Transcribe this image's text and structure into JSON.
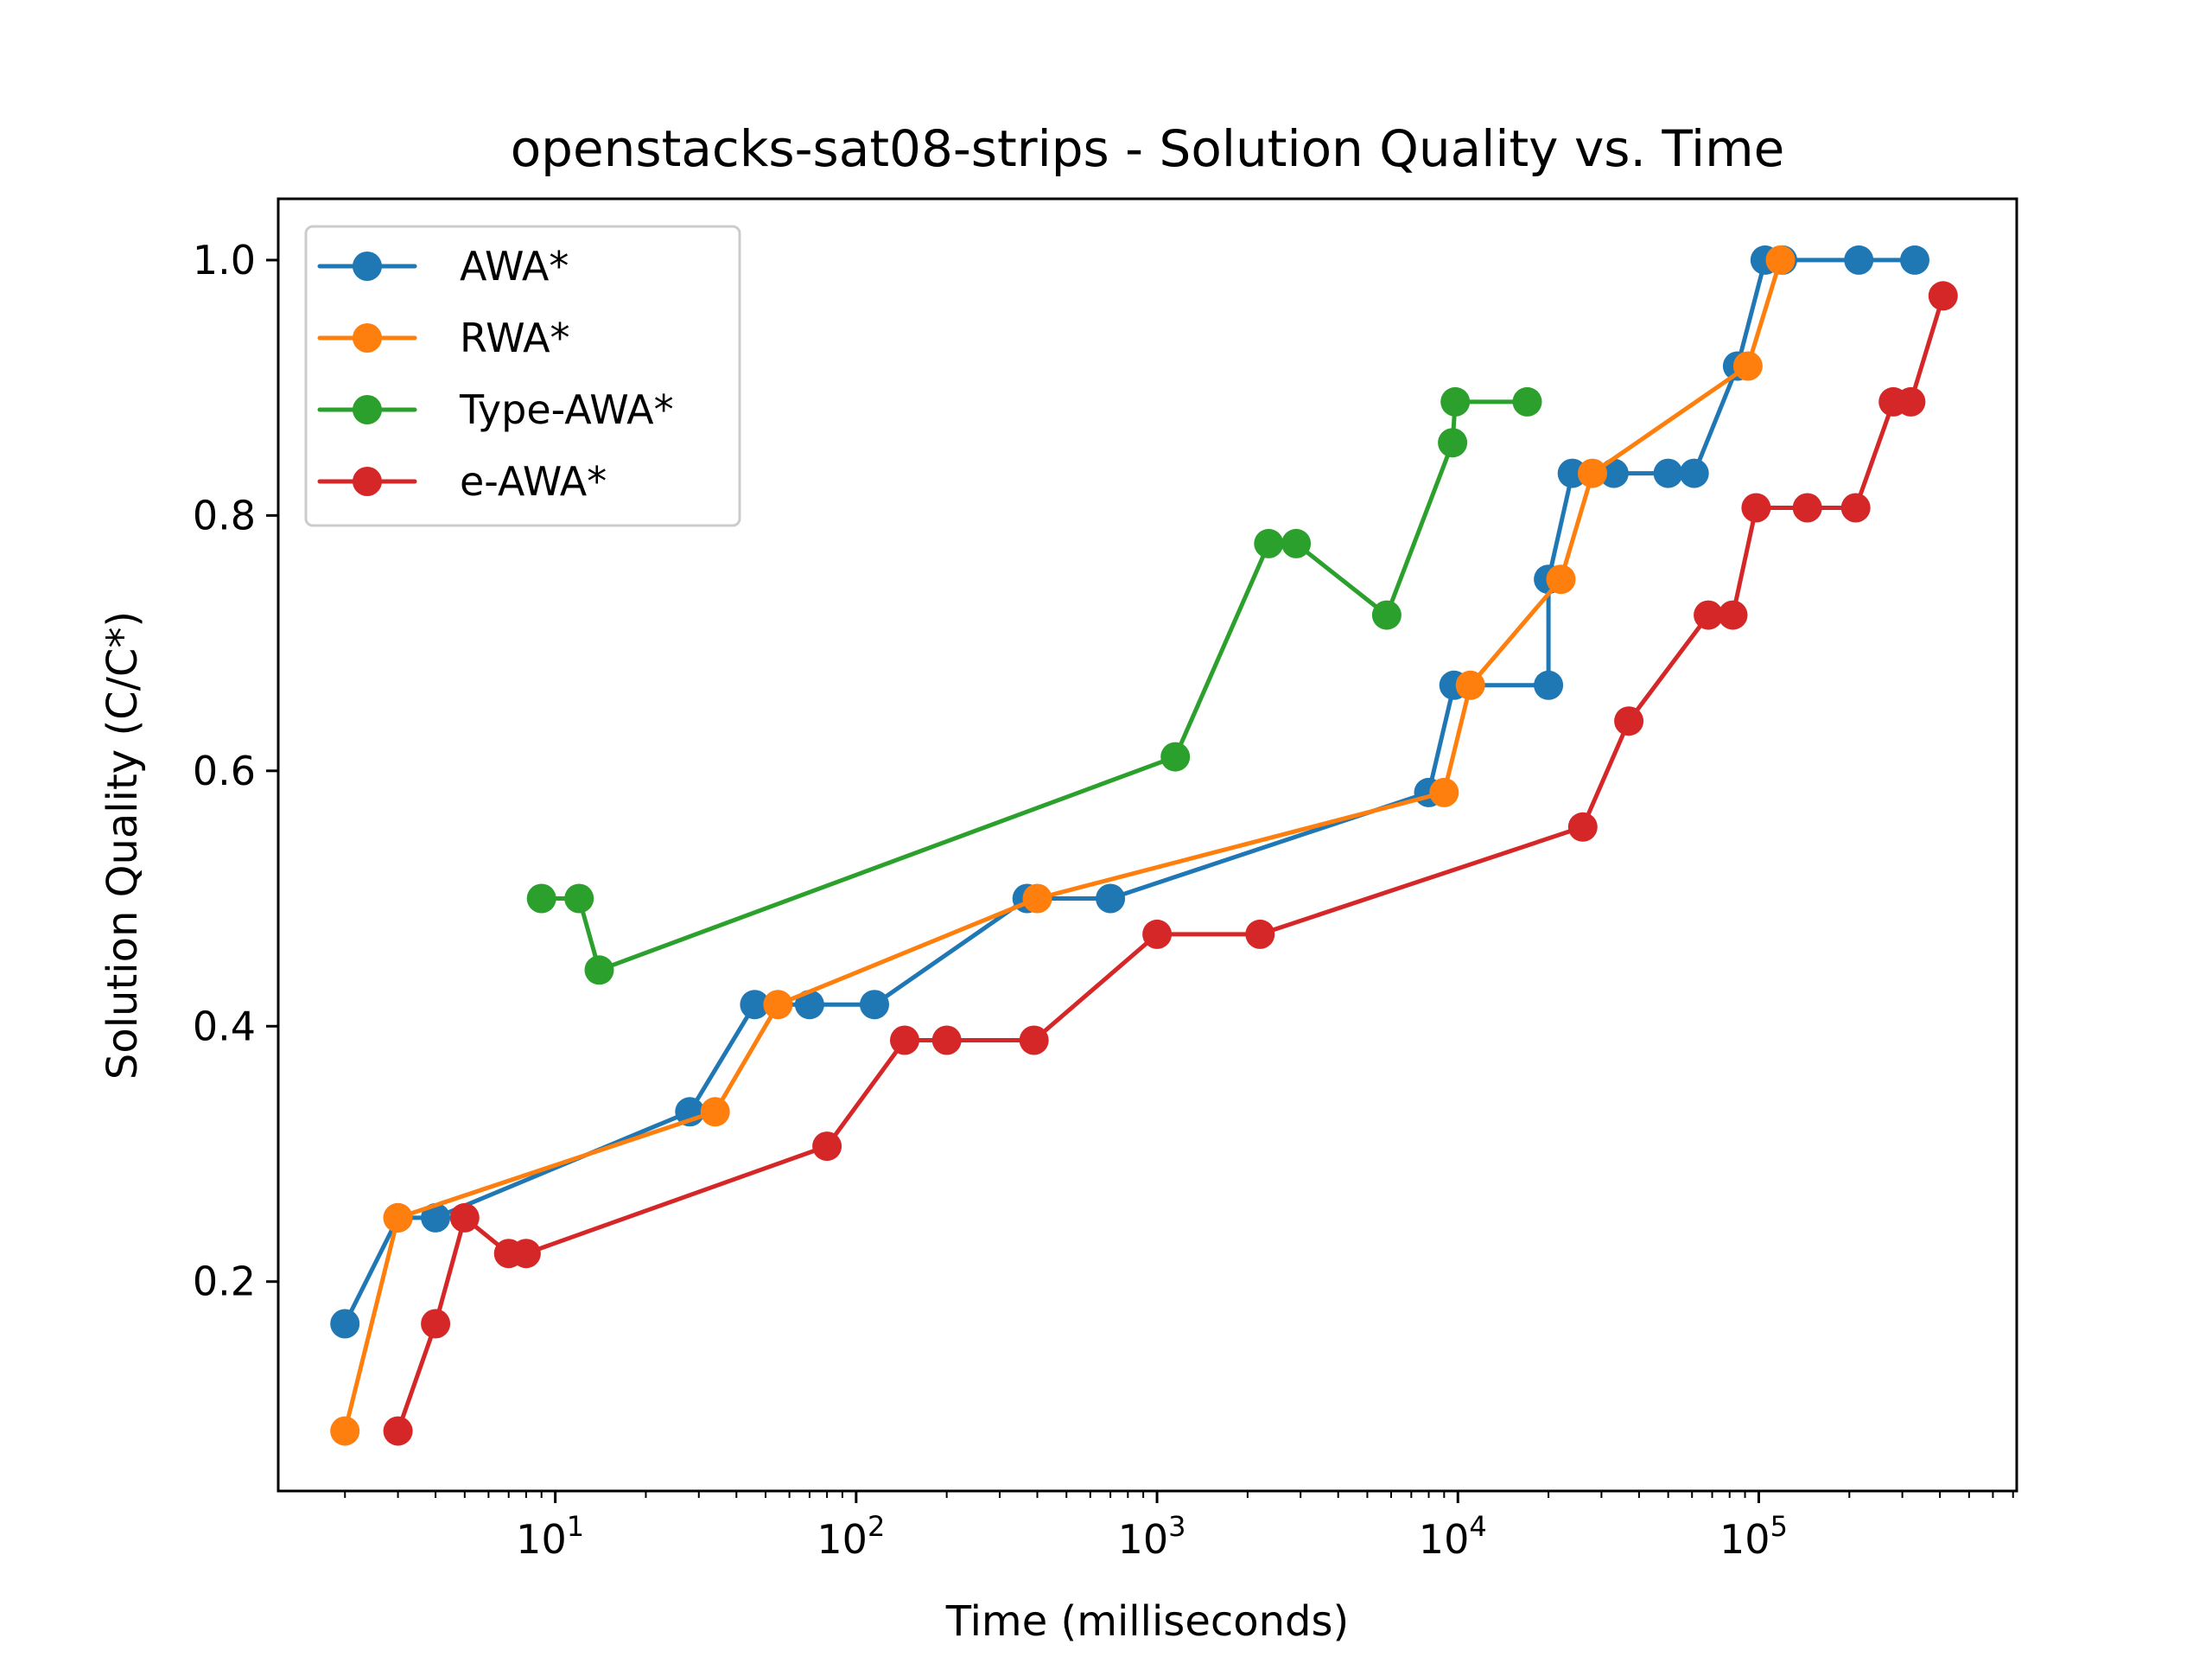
{
  "chart_data": {
    "type": "line",
    "title": "openstacks-sat08-strips - Solution Quality vs. Time",
    "xlabel": "Time (milliseconds)",
    "ylabel": "Solution Quality (C/C*)",
    "xscale": "log",
    "xlim": [
      1.2,
      720000
    ],
    "ylim": [
      0.036,
      1.048
    ],
    "x_ticks": [
      {
        "value": 10,
        "base": "10",
        "exp": "1"
      },
      {
        "value": 100,
        "base": "10",
        "exp": "2"
      },
      {
        "value": 1000,
        "base": "10",
        "exp": "3"
      },
      {
        "value": 10000,
        "base": "10",
        "exp": "4"
      },
      {
        "value": 100000,
        "base": "10",
        "exp": "5"
      }
    ],
    "y_ticks": [
      {
        "value": 0.2,
        "label": "0.2"
      },
      {
        "value": 0.4,
        "label": "0.4"
      },
      {
        "value": 0.6,
        "label": "0.6"
      },
      {
        "value": 0.8,
        "label": "0.8"
      },
      {
        "value": 1.0,
        "label": "1.0"
      }
    ],
    "grid": false,
    "legend_position": "top-left",
    "series": [
      {
        "name": "AWA*",
        "color": "#1f77b4",
        "x": [
          2,
          3,
          4,
          28,
          46,
          70,
          115,
          370,
          700,
          8000,
          9700,
          20000,
          20000,
          24000,
          33000,
          50000,
          61000,
          85000,
          105000,
          120000,
          215000,
          330000
        ],
        "y": [
          0.167,
          0.25,
          0.25,
          0.333,
          0.417,
          0.417,
          0.417,
          0.5,
          0.5,
          0.583,
          0.667,
          0.667,
          0.75,
          0.833,
          0.833,
          0.833,
          0.833,
          0.917,
          1.0,
          1.0,
          1.0,
          1.0
        ]
      },
      {
        "name": "RWA*",
        "color": "#ff7f0e",
        "x": [
          2,
          3,
          34,
          55,
          400,
          9000,
          11000,
          22000,
          28000,
          92000,
          118000
        ],
        "y": [
          0.083,
          0.25,
          0.333,
          0.417,
          0.5,
          0.583,
          0.667,
          0.75,
          0.833,
          0.917,
          1.0
        ]
      },
      {
        "name": "Type-AWA*",
        "color": "#2ca02c",
        "x": [
          9,
          12,
          14,
          1150,
          2350,
          2900,
          5800,
          9600,
          9800,
          17000
        ],
        "y": [
          0.5,
          0.5,
          0.444,
          0.611,
          0.778,
          0.778,
          0.722,
          0.857,
          0.889,
          0.889
        ]
      },
      {
        "name": "e-AWA*",
        "color": "#d62728",
        "x": [
          3,
          4,
          5,
          7,
          8,
          80,
          145,
          200,
          390,
          1000,
          2200,
          26000,
          37000,
          68000,
          82000,
          98000,
          145000,
          210000,
          280000,
          320000,
          410000
        ],
        "y": [
          0.083,
          0.167,
          0.25,
          0.222,
          0.222,
          0.306,
          0.389,
          0.389,
          0.389,
          0.472,
          0.472,
          0.556,
          0.639,
          0.722,
          0.722,
          0.806,
          0.806,
          0.806,
          0.889,
          0.889,
          0.972
        ]
      }
    ]
  }
}
